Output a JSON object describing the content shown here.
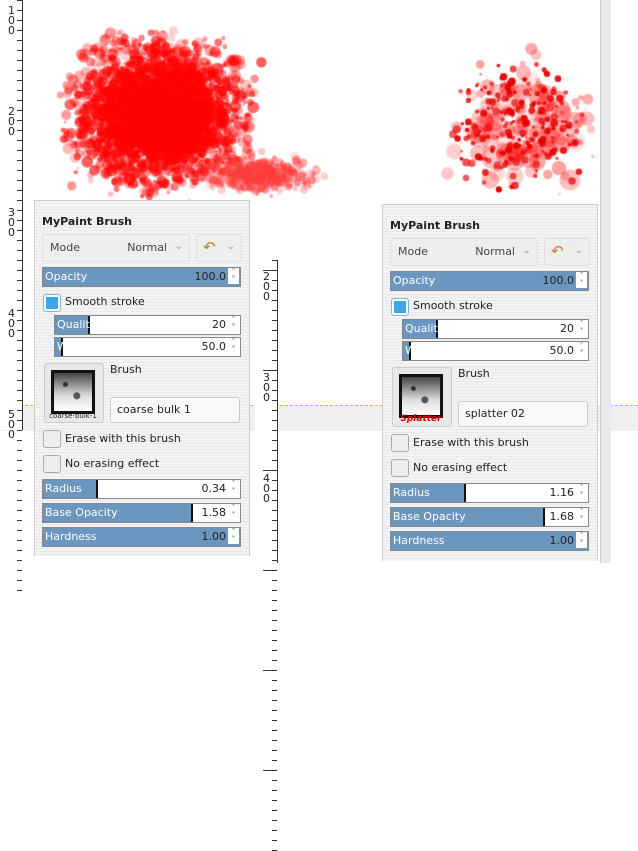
{
  "colors": {
    "paint": "#ff0000",
    "slider_fill": "#6a96c0",
    "checkbox_on": "#3aa6e8"
  },
  "rulers": {
    "left": [
      "100",
      "200",
      "300",
      "400",
      "500"
    ],
    "middle": [
      "200",
      "300",
      "400"
    ]
  },
  "panels": [
    {
      "title": "MyPaint Brush",
      "mode_label": "Mode",
      "mode_value": "Normal",
      "reset_icon": "reset-brush-icon",
      "opacity": {
        "label": "Opacity",
        "value": "100.0",
        "fill": 1.0
      },
      "smooth_stroke": {
        "label": "Smooth stroke",
        "checked": true
      },
      "quality": {
        "label": "Quality",
        "value": "20",
        "fill": 0.18
      },
      "weight": {
        "label": "Weight",
        "value": "50.0",
        "fill": 0.03
      },
      "brush_label": "Brush",
      "brush_thumb_caption": "coarse-bulk-1",
      "brush_name": "coarse bulk 1",
      "erase": {
        "label": "Erase with this brush",
        "checked": false
      },
      "no_erase": {
        "label": "No erasing effect",
        "checked": false
      },
      "radius": {
        "label": "Radius",
        "value": "0.34",
        "fill": 0.27
      },
      "base_opacity": {
        "label": "Base Opacity",
        "value": "1.58",
        "fill": 0.75
      },
      "hardness": {
        "label": "Hardness",
        "value": "1.00",
        "fill": 1.0
      }
    },
    {
      "title": "MyPaint Brush",
      "mode_label": "Mode",
      "mode_value": "Normal",
      "reset_icon": "reset-brush-icon",
      "opacity": {
        "label": "Opacity",
        "value": "100.0",
        "fill": 1.0
      },
      "smooth_stroke": {
        "label": "Smooth stroke",
        "checked": true
      },
      "quality": {
        "label": "Quality",
        "value": "20",
        "fill": 0.18
      },
      "weight": {
        "label": "Weight",
        "value": "50.0",
        "fill": 0.03
      },
      "brush_label": "Brush",
      "brush_thumb_caption": "Splatter",
      "brush_name": "splatter 02",
      "erase": {
        "label": "Erase with this brush",
        "checked": false
      },
      "no_erase": {
        "label": "No erasing effect",
        "checked": false
      },
      "radius": {
        "label": "Radius",
        "value": "1.16",
        "fill": 0.37
      },
      "base_opacity": {
        "label": "Base Opacity",
        "value": "1.68",
        "fill": 0.77
      },
      "hardness": {
        "label": "Hardness",
        "value": "1.00",
        "fill": 1.0
      }
    }
  ]
}
